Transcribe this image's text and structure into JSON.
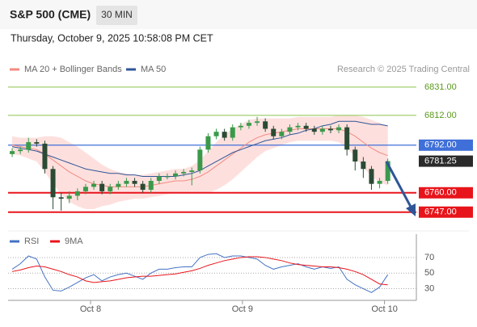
{
  "header": {
    "title": "S&P 500 (CME)",
    "interval": "30 MIN",
    "timestamp": "Thursday, October 9, 2025 10:58:08 PM CET",
    "credit": "Research © 2025 Trading Central"
  },
  "chart_data": [
    {
      "type": "candlestick",
      "xlim": [
        -0.5,
        49.5
      ],
      "ylim": [
        6736,
        6838
      ],
      "up_color": "#3a9a4a",
      "down_color": "#2b4a33",
      "open": [
        6786,
        6788,
        6789,
        6794,
        6793,
        6776,
        6757,
        6756,
        6758,
        6761,
        6764,
        6766,
        6761,
        6764,
        6766,
        6768,
        6766,
        6762,
        6768,
        6771,
        6771,
        6773,
        6774,
        6775,
        6789,
        6798,
        6801,
        6797,
        6804,
        6805,
        6807,
        6808,
        6803,
        6798,
        6801,
        6804,
        6805,
        6803,
        6801,
        6803,
        6802,
        6804,
        6789,
        6781,
        6776,
        6766,
        6768
      ],
      "high": [
        6790,
        6791,
        6797,
        6796,
        6795,
        6778,
        6760,
        6761,
        6763,
        6766,
        6768,
        6768,
        6766,
        6768,
        6770,
        6770,
        6768,
        6770,
        6773,
        6773,
        6775,
        6776,
        6777,
        6791,
        6800,
        6803,
        6803,
        6806,
        6807,
        6809,
        6811,
        6810,
        6805,
        6803,
        6806,
        6807,
        6807,
        6805,
        6805,
        6805,
        6806,
        6806,
        6791,
        6784,
        6778,
        6770,
        6783
      ],
      "low": [
        6784,
        6786,
        6787,
        6791,
        6773,
        6749,
        6748,
        6753,
        6755,
        6759,
        6762,
        6759,
        6759,
        6762,
        6764,
        6764,
        6760,
        6760,
        6766,
        6769,
        6769,
        6771,
        6765,
        6773,
        6787,
        6796,
        6795,
        6795,
        6802,
        6803,
        6805,
        6801,
        6796,
        6796,
        6799,
        6802,
        6801,
        6799,
        6799,
        6800,
        6800,
        6785,
        6775,
        6770,
        6762,
        6763,
        6766
      ],
      "close": [
        6788,
        6789,
        6794,
        6793,
        6776,
        6757,
        6756,
        6758,
        6761,
        6764,
        6766,
        6761,
        6764,
        6766,
        6768,
        6766,
        6762,
        6768,
        6771,
        6771,
        6773,
        6774,
        6775,
        6789,
        6798,
        6801,
        6797,
        6804,
        6805,
        6807,
        6808,
        6803,
        6798,
        6801,
        6804,
        6805,
        6803,
        6801,
        6803,
        6802,
        6804,
        6789,
        6781,
        6776,
        6766,
        6768,
        6781.25
      ],
      "series": [
        {
          "name": "MA 20 + Bollinger Bands",
          "color": "#f28b82",
          "band_color": "#fde0de",
          "values": [
            6792,
            6791,
            6790,
            6789,
            6786,
            6782,
            6778,
            6774,
            6771,
            6768,
            6766,
            6765,
            6764,
            6764,
            6764,
            6764,
            6764,
            6765,
            6766,
            6767,
            6768,
            6768,
            6769,
            6771,
            6774,
            6778,
            6782,
            6786,
            6790,
            6794,
            6797,
            6799,
            6800,
            6801,
            6802,
            6803,
            6803,
            6803,
            6803,
            6803,
            6803,
            6801,
            6798,
            6794,
            6790,
            6787,
            6785
          ],
          "upper": [
            6798,
            6797,
            6797,
            6797,
            6798,
            6798,
            6797,
            6794,
            6791,
            6787,
            6783,
            6779,
            6776,
            6774,
            6773,
            6772,
            6772,
            6773,
            6774,
            6775,
            6776,
            6776,
            6778,
            6782,
            6788,
            6794,
            6799,
            6803,
            6806,
            6809,
            6810,
            6810,
            6810,
            6810,
            6810,
            6811,
            6811,
            6811,
            6811,
            6811,
            6812,
            6812,
            6812,
            6811,
            6809,
            6807,
            6805
          ],
          "lower": [
            6786,
            6785,
            6783,
            6781,
            6774,
            6766,
            6759,
            6754,
            6751,
            6749,
            6749,
            6751,
            6752,
            6754,
            6755,
            6756,
            6756,
            6757,
            6758,
            6759,
            6760,
            6760,
            6760,
            6760,
            6760,
            6762,
            6765,
            6769,
            6774,
            6779,
            6784,
            6788,
            6790,
            6792,
            6794,
            6795,
            6795,
            6795,
            6795,
            6795,
            6794,
            6790,
            6784,
            6777,
            6771,
            6767,
            6765
          ]
        },
        {
          "name": "MA 50",
          "color": "#2f5597",
          "values": [
            6791,
            6790,
            6789,
            6788,
            6786,
            6784,
            6782,
            6780,
            6778,
            6776,
            6775,
            6774,
            6773,
            6773,
            6772,
            6772,
            6771,
            6771,
            6771,
            6771,
            6771,
            6772,
            6773,
            6775,
            6778,
            6781,
            6784,
            6787,
            6789,
            6791,
            6793,
            6795,
            6796,
            6797,
            6799,
            6800,
            6802,
            6803,
            6805,
            6806,
            6808,
            6808,
            6808,
            6807,
            6806,
            6806,
            6805
          ]
        }
      ],
      "levels": [
        {
          "value": 6831,
          "label": "6831.00",
          "color": "#8bc34a"
        },
        {
          "value": 6812,
          "label": "6812.00",
          "color": "#8bc34a"
        },
        {
          "value": 6792,
          "label": "6792.00",
          "color": "#3f6fd8"
        },
        {
          "value": 6760,
          "label": "6760.00",
          "color": "#e8141b"
        },
        {
          "value": 6747,
          "label": "6747.00",
          "color": "#e8141b"
        }
      ],
      "last": 6781.25,
      "last_color": "#2a2a2a"
    },
    {
      "type": "line",
      "xlim": [
        -0.5,
        49.5
      ],
      "ylim": [
        15,
        100
      ],
      "yticks": [
        30,
        50,
        70
      ],
      "xticks": [
        {
          "value": 9.6,
          "label": "Oct 8"
        },
        {
          "value": 28.2,
          "label": "Oct 9"
        },
        {
          "value": 45.6,
          "label": "Oct 10"
        }
      ],
      "series": [
        {
          "name": "RSI",
          "color": "#4472c4",
          "values": [
            55,
            62,
            72,
            68,
            45,
            28,
            27,
            32,
            38,
            44,
            48,
            40,
            45,
            48,
            50,
            46,
            42,
            50,
            55,
            55,
            57,
            58,
            58,
            70,
            74,
            75,
            70,
            72,
            72,
            70,
            68,
            60,
            55,
            58,
            60,
            62,
            58,
            55,
            58,
            56,
            58,
            42,
            35,
            30,
            25,
            32,
            48
          ]
        },
        {
          "name": "9MA",
          "color": "#e8141b",
          "values": [
            52,
            54,
            57,
            59,
            58,
            55,
            52,
            48,
            45,
            40,
            38,
            39,
            40,
            42,
            44,
            45,
            46,
            46,
            47,
            48,
            49,
            51,
            53,
            56,
            60,
            63,
            66,
            68,
            70,
            71,
            71,
            70,
            68,
            66,
            63,
            61,
            60,
            59,
            58,
            58,
            57,
            55,
            52,
            48,
            42,
            36,
            35
          ]
        }
      ]
    }
  ]
}
